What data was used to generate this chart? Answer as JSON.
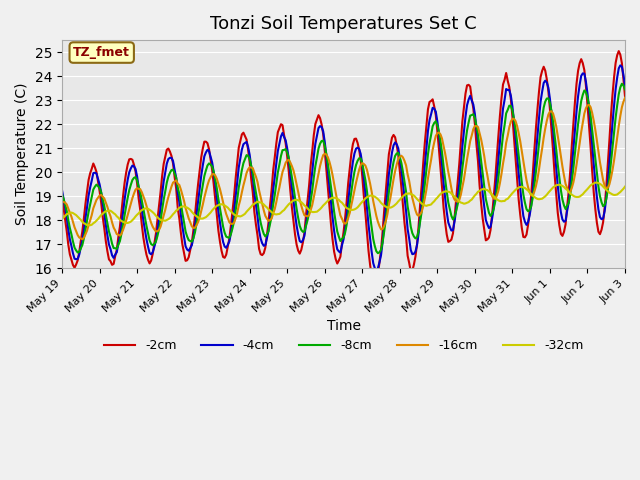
{
  "title": "Tonzi Soil Temperatures Set C",
  "xlabel": "Time",
  "ylabel": "Soil Temperature (C)",
  "ylim": [
    16.0,
    25.5
  ],
  "xlim": [
    0,
    15
  ],
  "annotation": "TZ_fmet",
  "fig_facecolor": "#f0f0f0",
  "axes_facecolor": "#e8e8e8",
  "series": {
    "-2cm": {
      "color": "#cc0000",
      "lw": 1.5
    },
    "-4cm": {
      "color": "#0000cc",
      "lw": 1.5
    },
    "-8cm": {
      "color": "#00aa00",
      "lw": 1.5
    },
    "-16cm": {
      "color": "#dd8800",
      "lw": 1.5
    },
    "-32cm": {
      "color": "#cccc00",
      "lw": 1.5
    }
  },
  "xtick_labels": [
    "May 19",
    "May 20",
    "May 21",
    "May 22",
    "May 23",
    "May 24",
    "May 25",
    "May 26",
    "May 27",
    "May 28",
    "May 29",
    "May 30",
    "May 31",
    "Jun 1",
    "Jun 2",
    "Jun 3"
  ],
  "yticks": [
    16.0,
    17.0,
    18.0,
    19.0,
    20.0,
    21.0,
    22.0,
    23.0,
    24.0,
    25.0
  ]
}
